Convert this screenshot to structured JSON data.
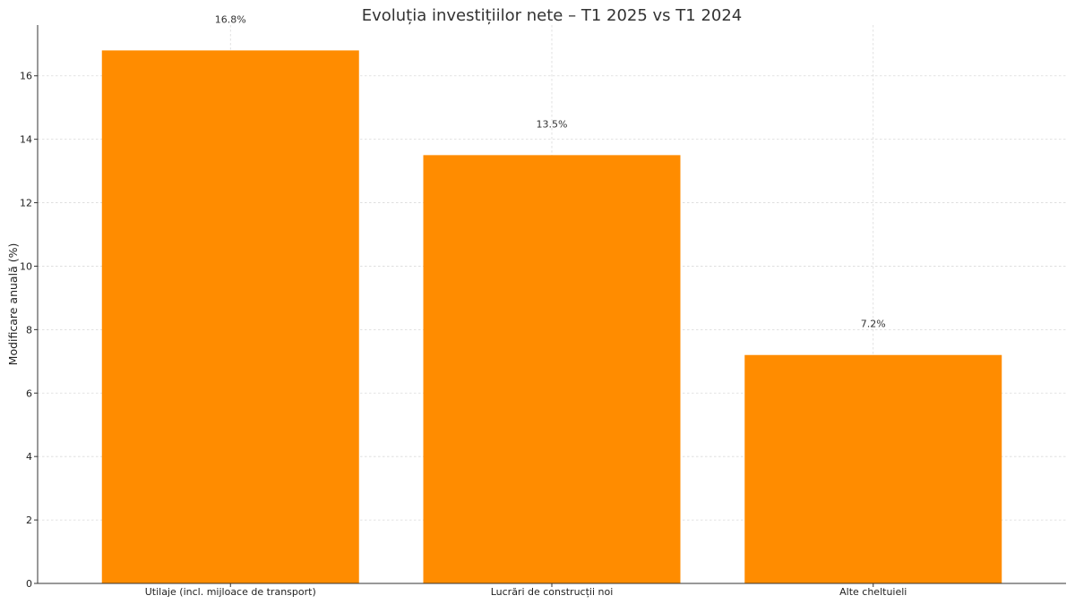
{
  "chart_data": {
    "type": "bar",
    "title": "Evoluția investițiilor nete – T1 2025 vs T1 2024",
    "xlabel": "",
    "ylabel": "Modificare anuală (%)",
    "categories": [
      "Utilaje (incl. mijloace de transport)",
      "Lucrări de construcții noi",
      "Alte cheltuieli"
    ],
    "values": [
      16.8,
      13.5,
      7.2
    ],
    "data_labels": [
      "16.8%",
      "13.5%",
      "7.2%"
    ],
    "ylim": [
      0,
      17.6
    ],
    "yticks": [
      0,
      2,
      4,
      6,
      8,
      10,
      12,
      14,
      16
    ],
    "grid": true,
    "bar_color": "#FF8C00"
  }
}
